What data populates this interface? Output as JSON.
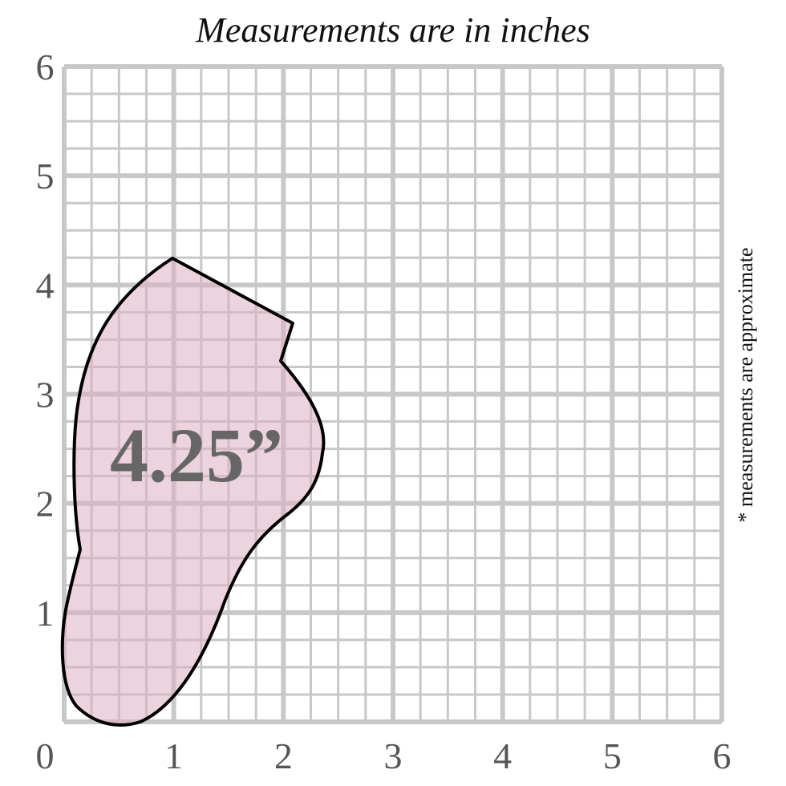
{
  "title": "Measurements are in inches",
  "x_axis_labels": [
    0,
    1,
    2,
    3,
    4,
    5,
    6
  ],
  "y_axis_labels": [
    0,
    1,
    2,
    3,
    4,
    5,
    6
  ],
  "shape_label": "4.25”",
  "note": "* measurements are approximate"
}
